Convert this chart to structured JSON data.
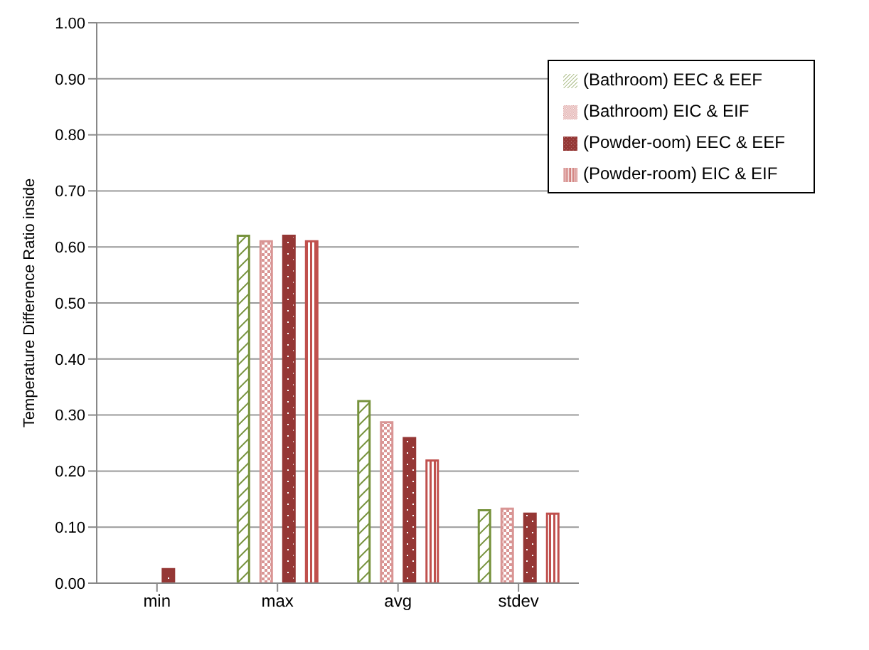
{
  "chart_data": {
    "type": "bar",
    "ylabel": "Temperature Difference Ratio inside",
    "categories": [
      "min",
      "max",
      "avg",
      "stdev"
    ],
    "series": [
      {
        "name": "(Bathroom) EEC & EEF",
        "color": "#76923c",
        "values": [
          0,
          0.62,
          0.325,
          0.13
        ]
      },
      {
        "name": "(Bathroom) EIC & EIF",
        "color": "#d99594",
        "values": [
          0,
          0.61,
          0.287,
          0.133
        ]
      },
      {
        "name": "(Powder-oom) EEC & EEF",
        "color": "#953735",
        "values": [
          0.025,
          0.62,
          0.259,
          0.124
        ]
      },
      {
        "name": "(Powder-room) EIC & EIF",
        "color": "#c0504d",
        "values": [
          0,
          0.61,
          0.219,
          0.124
        ]
      }
    ],
    "ylim": [
      0,
      1
    ],
    "yticks": [
      {
        "value": 0,
        "label": "0.00"
      },
      {
        "value": 0.1,
        "label": "0.10"
      },
      {
        "value": 0.2,
        "label": "0.20"
      },
      {
        "value": 0.3,
        "label": "0.30"
      },
      {
        "value": 0.4,
        "label": "0.40"
      },
      {
        "value": 0.5,
        "label": "0.50"
      },
      {
        "value": 0.6,
        "label": "0.60"
      },
      {
        "value": 0.7,
        "label": "0.70"
      },
      {
        "value": 0.8,
        "label": "0.80"
      },
      {
        "value": 0.9,
        "label": "0.90"
      },
      {
        "value": 1,
        "label": "1.00"
      }
    ],
    "grid": "y",
    "legend": "top right"
  }
}
